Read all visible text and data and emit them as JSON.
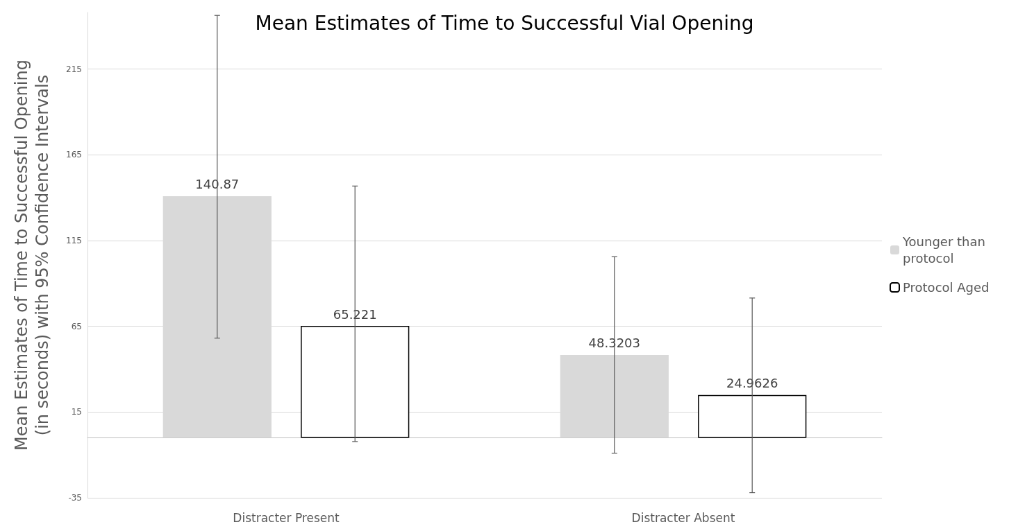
{
  "chart_data": {
    "type": "bar",
    "title": "Mean Estimates of Time to Successful Vial Opening",
    "ylabel": "Mean Estimates of Time to Successful Opening\n(in seconds) with 95% Confidence Intervals",
    "categories": [
      "Distracter Present",
      "Distracter Absent"
    ],
    "series": [
      {
        "name": "Younger than protocol",
        "color": "#d9d9d9",
        "values": [
          140.87,
          48.3203
        ],
        "errors": [
          [
            58.1,
            246.3
          ],
          [
            -9.0,
            105.6
          ]
        ]
      },
      {
        "name": "Protocol Aged",
        "color": "#ffffff",
        "values": [
          65.221,
          24.9626
        ],
        "errors": [
          [
            -2.2,
            146.8
          ],
          [
            -32.0,
            81.5
          ]
        ]
      }
    ],
    "ylim": [
      -35,
      248
    ],
    "yticks": [
      -35,
      15,
      65,
      115,
      165,
      215
    ],
    "grid": "y",
    "legend": "right",
    "data_labels": true
  }
}
